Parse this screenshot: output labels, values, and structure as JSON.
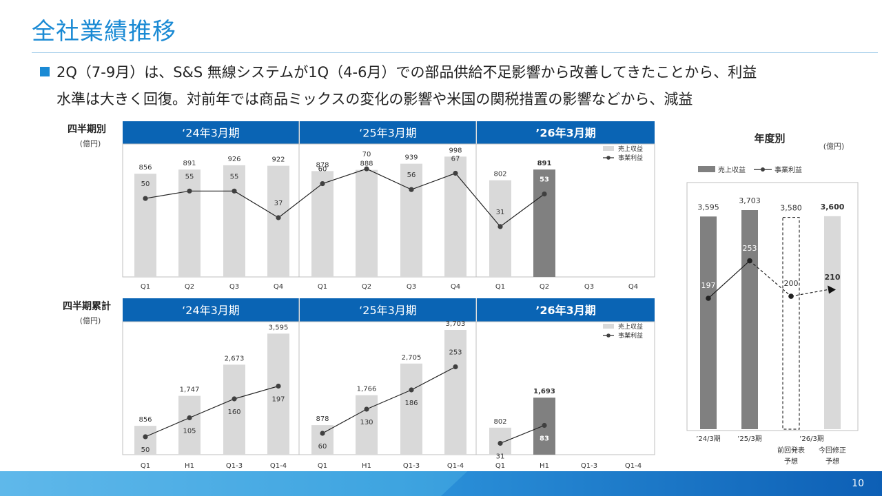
{
  "page": {
    "title": "全社業績推移",
    "subtitle_line1": "2Q（7-9月）は、S&S 無線システムが1Q（4-6月）での部品供給不足影響から改善してきたことから、利益",
    "subtitle_line2": "水準は大きく回復。対前年では商品ミックスの変化の影響や米国の関税措置の影響などから、減益",
    "page_number": "10"
  },
  "colors": {
    "accent": "#1a8ad4",
    "header": "#0a64b4",
    "bar_light": "#d9d9d9",
    "bar_dark": "#808080",
    "line": "#222222",
    "point": "#404040"
  },
  "chart_data": [
    {
      "id": "quarterly",
      "type": "bar+line",
      "title": "四半期別",
      "unit": "(億円)",
      "legend": [
        "売上収益",
        "事業利益"
      ],
      "period_headers": [
        "‘24年3月期",
        "‘25年3月期",
        "’26年3月期"
      ],
      "categories": [
        "Q1",
        "Q2",
        "Q3",
        "Q4",
        "Q1",
        "Q2",
        "Q3",
        "Q4",
        "Q1",
        "Q2",
        "Q3",
        "Q4"
      ],
      "series": [
        {
          "name": "売上収益",
          "values": [
            856,
            891,
            926,
            922,
            878,
            888,
            939,
            998,
            802,
            891,
            null,
            null
          ]
        },
        {
          "name": "事業利益",
          "values": [
            50,
            55,
            55,
            37,
            60,
            70,
            56,
            67,
            31,
            53,
            null,
            null
          ]
        }
      ],
      "highlight_index": 9,
      "ylim": [
        0,
        1000
      ]
    },
    {
      "id": "cumulative",
      "type": "bar+line",
      "title": "四半期累計",
      "unit": "(億円)",
      "legend": [
        "売上収益",
        "事業利益"
      ],
      "period_headers": [
        "‘24年3月期",
        "‘25年3月期",
        "’26年3月期"
      ],
      "categories": [
        "Q1",
        "H1",
        "Q1-3",
        "Q1-4",
        "Q1",
        "H1",
        "Q1-3",
        "Q1-4",
        "Q1",
        "H1",
        "Q1-3",
        "Q1-4"
      ],
      "series": [
        {
          "name": "売上収益",
          "values": [
            856,
            1747,
            2673,
            3595,
            878,
            1766,
            2705,
            3703,
            802,
            1693,
            null,
            null
          ]
        },
        {
          "name": "事業利益",
          "values": [
            50,
            105,
            160,
            197,
            60,
            130,
            186,
            253,
            31,
            83,
            null,
            null
          ]
        }
      ],
      "highlight_index": 9,
      "ylim": [
        0,
        3703
      ]
    },
    {
      "id": "annual",
      "type": "bar+line",
      "title": "年度別",
      "unit": "(億円)",
      "legend": [
        "売上収益",
        "事業利益"
      ],
      "categories": [
        "’24/3期",
        "’25/3期",
        "前回発表予想",
        "今回修正予想"
      ],
      "category_labels_line1": [
        "’24/3期",
        "’25/3期",
        "前回発表",
        "今回修正"
      ],
      "category_labels_line2": [
        "",
        "",
        "予想",
        "予想"
      ],
      "group_label": "’26/3期",
      "series": [
        {
          "name": "売上収益",
          "values": [
            3595,
            3703,
            3580,
            3600
          ]
        },
        {
          "name": "事業利益",
          "values": [
            197,
            253,
            200,
            210
          ]
        }
      ],
      "value_labels_sales": [
        "3,595",
        "3,703",
        "3,580",
        "3,600"
      ],
      "value_labels_profit": [
        "197",
        "253",
        "200",
        "210"
      ]
    }
  ]
}
